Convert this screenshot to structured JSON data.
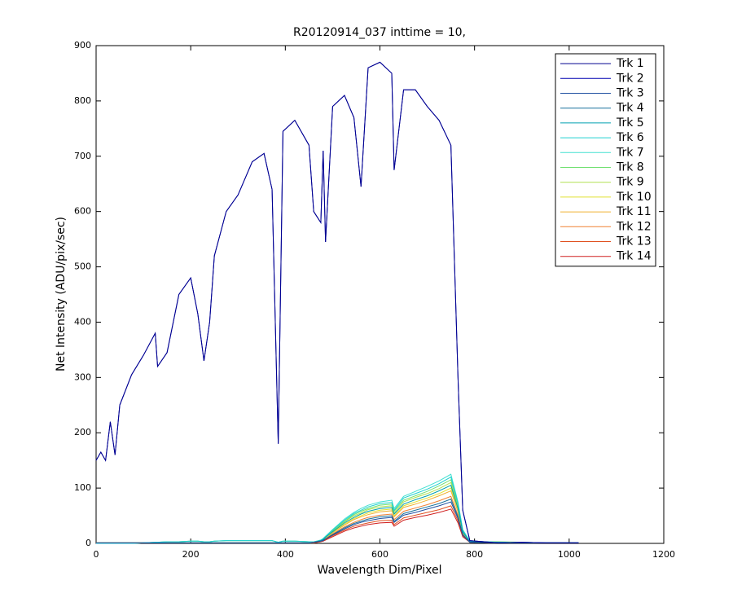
{
  "chart_data": {
    "type": "line",
    "title": "R20120914_037 inttime = 10,",
    "x_label": "Wavelength Dim/Pixel",
    "y_label": "Net Intensity (ADU/pix/sec)",
    "xlim": [
      0,
      1200
    ],
    "xticks": [
      0,
      200,
      400,
      600,
      800,
      1000,
      1200
    ],
    "ylim": [
      0,
      900
    ],
    "yticks": [
      0,
      100,
      200,
      300,
      400,
      500,
      600,
      700,
      800,
      900
    ],
    "legend": "northeast",
    "x": [
      0,
      10,
      20,
      30,
      40,
      50,
      75,
      100,
      125,
      130,
      150,
      175,
      200,
      215,
      228,
      240,
      250,
      275,
      300,
      330,
      355,
      372,
      385,
      395,
      420,
      450,
      460,
      475,
      480,
      485,
      500,
      525,
      545,
      560,
      575,
      600,
      625,
      630,
      650,
      675,
      700,
      725,
      750,
      765,
      775,
      790,
      850,
      900,
      950,
      1020
    ],
    "series": [
      {
        "name": "Trk 1",
        "color": "#00008f",
        "values": [
          150,
          165,
          150,
          220,
          160,
          250,
          305,
          340,
          380,
          320,
          345,
          450,
          480,
          415,
          330,
          400,
          520,
          600,
          630,
          690,
          705,
          640,
          180,
          745,
          765,
          720,
          600,
          580,
          710,
          545,
          790,
          810,
          770,
          645,
          860,
          870,
          850,
          675,
          820,
          820,
          790,
          765,
          720,
          300,
          60,
          5,
          1,
          2,
          1,
          1
        ]
      },
      {
        "name": "Trk 2",
        "color": "#0000b0",
        "values": [
          150,
          165,
          150,
          220,
          160,
          250,
          305,
          340,
          380,
          320,
          345,
          450,
          480,
          415,
          330,
          400,
          520,
          600,
          630,
          690,
          705,
          640,
          180,
          745,
          765,
          720,
          600,
          580,
          710,
          545,
          790,
          810,
          770,
          645,
          860,
          870,
          850,
          675,
          820,
          820,
          790,
          765,
          720,
          300,
          60,
          5,
          1,
          2,
          1,
          1
        ]
      },
      {
        "name": "Trk 3",
        "color": "#1f4fa0",
        "values": [
          1,
          1,
          1,
          1,
          1,
          1,
          1,
          1,
          1,
          1,
          1,
          1,
          1,
          1,
          1,
          1,
          1,
          1,
          1,
          1,
          1,
          1,
          1,
          1,
          1,
          1,
          2,
          4,
          5,
          8,
          15,
          26,
          34,
          38,
          41,
          45,
          47,
          38,
          51,
          56,
          62,
          68,
          75,
          45,
          15,
          2,
          1,
          1,
          1,
          1
        ]
      },
      {
        "name": "Trk 4",
        "color": "#16709b",
        "values": [
          1,
          1,
          1,
          1,
          1,
          1,
          1,
          1,
          1,
          1,
          1,
          1,
          1,
          1,
          1,
          1,
          1,
          1,
          1,
          1,
          1,
          1,
          1,
          1,
          1,
          1,
          2,
          4,
          6,
          8,
          16,
          28,
          36,
          40,
          44,
          48,
          50,
          40,
          54,
          60,
          66,
          72,
          80,
          48,
          16,
          2,
          1,
          1,
          1,
          1
        ]
      },
      {
        "name": "Trk 5",
        "color": "#00a0b0",
        "values": [
          1,
          1,
          1,
          1,
          1,
          1,
          1,
          1,
          1,
          1,
          1,
          1,
          1,
          1,
          1,
          1,
          1,
          1,
          1,
          1,
          1,
          1,
          1,
          1,
          1,
          1,
          2,
          5,
          7,
          11,
          21,
          37,
          47,
          53,
          58,
          63,
          65,
          53,
          71,
          79,
          86,
          95,
          105,
          63,
          21,
          3,
          2,
          1,
          1,
          1
        ]
      },
      {
        "name": "Trk 6",
        "color": "#20d0d0",
        "values": [
          0,
          0,
          0,
          0,
          0,
          0,
          0,
          1,
          2,
          2,
          3,
          3,
          4,
          4,
          3,
          3,
          4,
          5,
          5,
          5,
          5,
          5,
          2,
          4,
          4,
          3,
          2,
          6,
          8,
          12,
          24,
          42,
          54,
          60,
          66,
          72,
          74,
          60,
          82,
          90,
          98,
          108,
          120,
          72,
          24,
          4,
          2,
          1,
          1,
          1
        ]
      },
      {
        "name": "Trk 7",
        "color": "#40e0d0",
        "values": [
          0,
          0,
          0,
          0,
          0,
          0,
          0,
          1,
          2,
          2,
          3,
          3,
          4,
          4,
          3,
          3,
          4,
          5,
          5,
          5,
          5,
          5,
          2,
          4,
          4,
          3,
          3,
          6,
          9,
          13,
          25,
          44,
          56,
          63,
          69,
          75,
          78,
          63,
          85,
          94,
          103,
          113,
          125,
          75,
          25,
          4,
          2,
          1,
          1,
          1
        ]
      },
      {
        "name": "Trk 8",
        "color": "#70e070",
        "values": [
          0,
          0,
          0,
          0,
          0,
          0,
          0,
          1,
          2,
          2,
          3,
          3,
          4,
          4,
          3,
          3,
          4,
          5,
          5,
          5,
          5,
          5,
          2,
          4,
          4,
          3,
          2,
          6,
          8,
          12,
          23,
          40,
          52,
          58,
          63,
          69,
          71,
          58,
          78,
          86,
          94,
          104,
          115,
          69,
          23,
          3,
          3,
          2,
          1,
          1
        ]
      },
      {
        "name": "Trk 9",
        "color": "#b0e050",
        "values": [
          1,
          1,
          1,
          1,
          1,
          1,
          1,
          1,
          1,
          1,
          1,
          1,
          1,
          1,
          1,
          1,
          1,
          1,
          1,
          1,
          1,
          1,
          1,
          1,
          1,
          1,
          2,
          6,
          8,
          11,
          22,
          39,
          50,
          55,
          61,
          66,
          68,
          55,
          75,
          83,
          90,
          99,
          110,
          66,
          22,
          3,
          2,
          1,
          1,
          1
        ]
      },
      {
        "name": "Trk 10",
        "color": "#e0e030",
        "values": [
          1,
          1,
          1,
          1,
          1,
          1,
          1,
          1,
          1,
          1,
          1,
          1,
          1,
          1,
          1,
          1,
          1,
          1,
          1,
          1,
          1,
          1,
          1,
          1,
          1,
          1,
          2,
          5,
          7,
          10,
          20,
          35,
          45,
          50,
          55,
          60,
          62,
          50,
          68,
          75,
          82,
          90,
          100,
          60,
          20,
          3,
          1,
          1,
          1,
          1
        ]
      },
      {
        "name": "Trk 11",
        "color": "#f0b030",
        "values": [
          1,
          1,
          1,
          1,
          1,
          1,
          1,
          1,
          1,
          1,
          1,
          1,
          1,
          1,
          1,
          1,
          1,
          1,
          1,
          1,
          1,
          1,
          1,
          1,
          1,
          1,
          2,
          5,
          7,
          10,
          19,
          33,
          43,
          48,
          52,
          57,
          59,
          48,
          65,
          71,
          78,
          86,
          95,
          57,
          19,
          3,
          1,
          1,
          1,
          1
        ]
      },
      {
        "name": "Trk 12",
        "color": "#f08030",
        "values": [
          1,
          1,
          1,
          1,
          1,
          1,
          1,
          1,
          1,
          1,
          1,
          1,
          1,
          1,
          1,
          1,
          1,
          1,
          1,
          1,
          1,
          1,
          1,
          1,
          1,
          1,
          2,
          4,
          6,
          9,
          17,
          30,
          38,
          43,
          47,
          51,
          53,
          43,
          58,
          64,
          70,
          77,
          85,
          51,
          17,
          3,
          1,
          1,
          1,
          1
        ]
      },
      {
        "name": "Trk 13",
        "color": "#e05020",
        "values": [
          1,
          1,
          1,
          1,
          1,
          1,
          1,
          1,
          1,
          1,
          1,
          1,
          1,
          1,
          1,
          1,
          1,
          1,
          1,
          1,
          1,
          1,
          1,
          1,
          1,
          1,
          1,
          3,
          5,
          7,
          14,
          24,
          31,
          34,
          37,
          41,
          42,
          34,
          46,
          51,
          56,
          61,
          68,
          41,
          14,
          2,
          1,
          1,
          1,
          1
        ]
      },
      {
        "name": "Trk 14",
        "color": "#d02020",
        "values": [
          1,
          1,
          1,
          1,
          1,
          1,
          1,
          1,
          1,
          1,
          1,
          1,
          1,
          1,
          1,
          1,
          1,
          1,
          1,
          1,
          1,
          1,
          1,
          1,
          1,
          1,
          1,
          3,
          4,
          6,
          12,
          22,
          28,
          31,
          34,
          37,
          38,
          31,
          42,
          47,
          51,
          56,
          62,
          37,
          12,
          2,
          1,
          1,
          1,
          1
        ]
      }
    ]
  }
}
